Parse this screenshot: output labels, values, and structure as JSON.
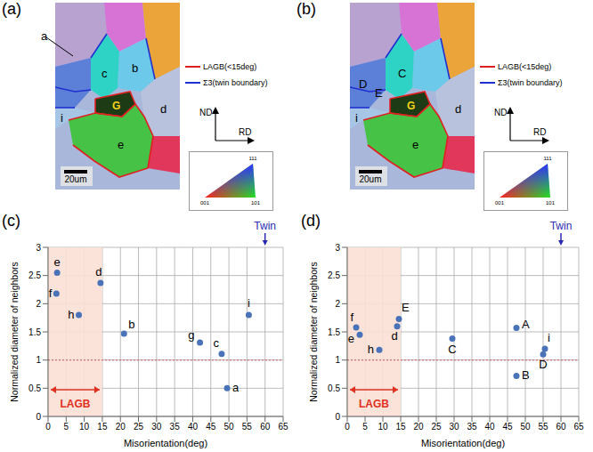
{
  "maps": [
    {
      "panel": "(a)",
      "grain_labels": [
        "a",
        "c",
        "b",
        "G",
        "d",
        "e",
        "i"
      ],
      "legend": [
        {
          "label": "LAGB(<15deg)",
          "color": "#e02020"
        },
        {
          "label": "Σ3(twin boundary)",
          "color": "#2030d0"
        }
      ],
      "axes": [
        "ND",
        "RD"
      ],
      "key_labels": [
        "111",
        "001",
        "101"
      ],
      "scale_bar": "20um"
    },
    {
      "panel": "(b)",
      "grain_labels": [
        "D",
        "E",
        "C",
        "G",
        "d",
        "i",
        "e"
      ],
      "legend": [
        {
          "label": "LAGB(<15deg)",
          "color": "#e02020"
        },
        {
          "label": "Σ3(twin boundary)",
          "color": "#2030d0"
        }
      ],
      "axes": [
        "ND",
        "RD"
      ],
      "key_labels": [
        "111",
        "001",
        "101"
      ],
      "scale_bar": "20um"
    }
  ],
  "chart_data": [
    {
      "panel": "(c)",
      "type": "scatter",
      "x_label": "Misorientation(deg)",
      "y_label": "Normalized diameter of neighbors",
      "xlim": [
        0,
        65
      ],
      "xticks": [
        0,
        5,
        10,
        15,
        20,
        25,
        30,
        35,
        40,
        45,
        50,
        55,
        60,
        65
      ],
      "ylim": [
        0,
        3
      ],
      "yticks": [
        0,
        0.5,
        1,
        1.5,
        2,
        2.5,
        3
      ],
      "grid": true,
      "color": "#4a72b8",
      "labels": [
        "e",
        "f",
        "h",
        "d",
        "b",
        "g",
        "c",
        "a",
        "i"
      ],
      "x": [
        2.5,
        2.3,
        8.5,
        14.5,
        21,
        42,
        48,
        49.5,
        55.5
      ],
      "values": [
        2.55,
        2.18,
        1.8,
        2.37,
        1.47,
        1.31,
        1.11,
        0.5,
        1.8
      ],
      "annotations": [
        {
          "text": "Twin",
          "x": 60,
          "color": "#2a2ab0"
        },
        {
          "text": "LAGB",
          "x": [
            0,
            15
          ],
          "color": "#e03020",
          "shade_color": "#fbe0d6"
        },
        {
          "y": 1,
          "color": "#d07070",
          "line_style": "dotted"
        }
      ]
    },
    {
      "panel": "(d)",
      "type": "scatter",
      "x_label": "Misorientation(deg)",
      "y_label": "Normalized diameter of neighbors",
      "xlim": [
        0,
        65
      ],
      "xticks": [
        0,
        5,
        10,
        15,
        20,
        25,
        30,
        35,
        40,
        45,
        50,
        55,
        60,
        65
      ],
      "ylim": [
        0,
        3
      ],
      "yticks": [
        0,
        0.5,
        1,
        1.5,
        2,
        2.5,
        3
      ],
      "grid": true,
      "color": "#4a72b8",
      "labels": [
        "f",
        "e",
        "h",
        "d",
        "E",
        "C",
        "A",
        "B",
        "i",
        "D"
      ],
      "x": [
        2.5,
        3.5,
        9,
        14,
        14.5,
        29.5,
        47.5,
        47.5,
        55.5,
        55
      ],
      "values": [
        1.58,
        1.45,
        1.18,
        1.6,
        1.73,
        1.38,
        1.57,
        0.72,
        1.2,
        1.1
      ],
      "annotations": [
        {
          "text": "Twin",
          "x": 60,
          "color": "#2a2ab0"
        },
        {
          "text": "LAGB",
          "x": [
            0,
            15
          ],
          "color": "#e03020",
          "shade_color": "#fbe0d6"
        },
        {
          "y": 1,
          "color": "#d07070",
          "line_style": "dotted"
        }
      ]
    }
  ]
}
